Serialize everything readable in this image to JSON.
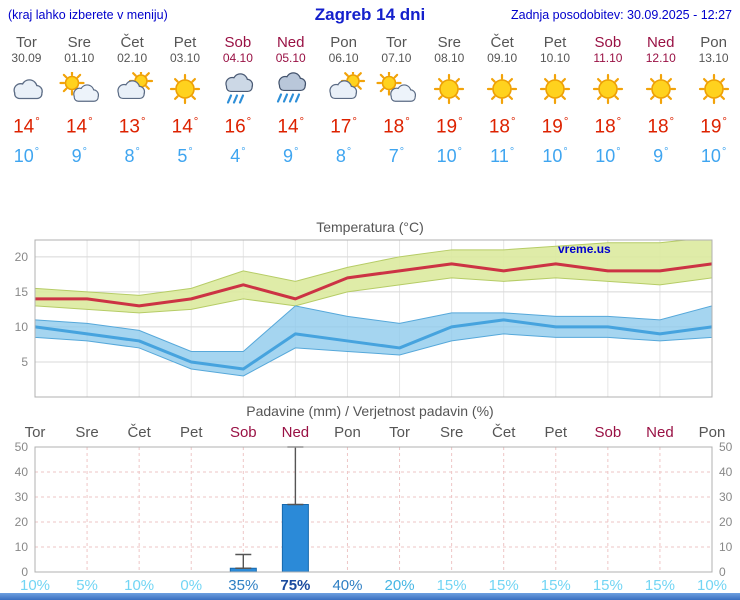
{
  "degree_symbol": "°",
  "header": {
    "left_note": "(kraj lahko izberete v meniju)",
    "title": "Zagreb 14 dni",
    "last_update": "Zadnja posodobitev: 30.09.2025 - 12:27"
  },
  "colors": {
    "header_blue": "#0000cc",
    "title_blue": "#1420cc",
    "weekday": "#555555",
    "weekend": "#991144",
    "temp_high": "#dd2200",
    "temp_low": "#3fa5f0",
    "footer_bar": "#3a6fc0"
  },
  "days": [
    {
      "name": "Tor",
      "date": "30.09",
      "weekend": false,
      "icon": "cloudy",
      "tmax": 14,
      "tmin": 10
    },
    {
      "name": "Sre",
      "date": "01.10",
      "weekend": false,
      "icon": "partly-cloudy",
      "tmax": 14,
      "tmin": 9
    },
    {
      "name": "Čet",
      "date": "02.10",
      "weekend": false,
      "icon": "mostly-cloudy",
      "tmax": 13,
      "tmin": 8
    },
    {
      "name": "Pet",
      "date": "03.10",
      "weekend": false,
      "icon": "sunny",
      "tmax": 14,
      "tmin": 5
    },
    {
      "name": "Sob",
      "date": "04.10",
      "weekend": true,
      "icon": "rain",
      "tmax": 16,
      "tmin": 4
    },
    {
      "name": "Ned",
      "date": "05.10",
      "weekend": true,
      "icon": "heavy-rain",
      "tmax": 14,
      "tmin": 9
    },
    {
      "name": "Pon",
      "date": "06.10",
      "weekend": false,
      "icon": "mostly-cloudy",
      "tmax": 17,
      "tmin": 8
    },
    {
      "name": "Tor",
      "date": "07.10",
      "weekend": false,
      "icon": "partly-cloudy",
      "tmax": 18,
      "tmin": 7
    },
    {
      "name": "Sre",
      "date": "08.10",
      "weekend": false,
      "icon": "sunny",
      "tmax": 19,
      "tmin": 10
    },
    {
      "name": "Čet",
      "date": "09.10",
      "weekend": false,
      "icon": "sunny",
      "tmax": 18,
      "tmin": 11
    },
    {
      "name": "Pet",
      "date": "10.10",
      "weekend": false,
      "icon": "sunny",
      "tmax": 19,
      "tmin": 10
    },
    {
      "name": "Sob",
      "date": "11.10",
      "weekend": true,
      "icon": "sunny",
      "tmax": 18,
      "tmin": 10
    },
    {
      "name": "Ned",
      "date": "12.10",
      "weekend": true,
      "icon": "sunny",
      "tmax": 18,
      "tmin": 9
    },
    {
      "name": "Pon",
      "date": "13.10",
      "weekend": false,
      "icon": "sunny",
      "tmax": 19,
      "tmin": 10
    }
  ],
  "chart_data": [
    {
      "type": "line",
      "title": "Temperatura (°C)",
      "watermark": "vreme.us",
      "categories": [
        "Tor",
        "Sre",
        "Čet",
        "Pet",
        "Sob",
        "Ned",
        "Pon",
        "Tor",
        "Sre",
        "Čet",
        "Pet",
        "Sob",
        "Ned",
        "Pon"
      ],
      "yticks": [
        5,
        10,
        15,
        20
      ],
      "ylim": [
        0,
        22.4
      ],
      "grid": true,
      "band_colors": {
        "tmax": "#dcea9e",
        "tmin": "#8ecbec"
      },
      "series": [
        {
          "name": "tmax",
          "color": "#cc3344",
          "values": [
            14,
            14,
            13,
            14,
            16,
            14,
            17,
            18,
            19,
            18,
            19,
            18,
            18,
            19
          ]
        },
        {
          "name": "tmax_band_upper",
          "values": [
            15.5,
            15,
            14.5,
            15.5,
            18,
            16.5,
            18.5,
            20,
            21,
            21,
            21.5,
            22,
            22,
            22.8
          ]
        },
        {
          "name": "tmax_band_lower",
          "values": [
            13,
            12.5,
            12,
            12.5,
            14,
            13,
            15,
            16,
            17,
            16.5,
            17,
            16.5,
            16,
            17
          ]
        },
        {
          "name": "tmin",
          "color": "#46a3de",
          "values": [
            10,
            9,
            8,
            5,
            4,
            9,
            8,
            7,
            10,
            11,
            10,
            10,
            9,
            10
          ]
        },
        {
          "name": "tmin_band_upper",
          "values": [
            11,
            10.5,
            9.5,
            6.5,
            6.5,
            13,
            11.5,
            10.5,
            12,
            12,
            11.5,
            11.5,
            11,
            13
          ]
        },
        {
          "name": "tmin_band_lower",
          "values": [
            8.5,
            8,
            7,
            4,
            3,
            7,
            6.5,
            6,
            8,
            9,
            8.5,
            8.5,
            8,
            8.5
          ]
        }
      ]
    },
    {
      "type": "bar",
      "title": "Padavine (mm) / Verjetnost padavin (%)",
      "categories": [
        "Tor",
        "Sre",
        "Čet",
        "Pet",
        "Sob",
        "Ned",
        "Pon",
        "Tor",
        "Sre",
        "Čet",
        "Pet",
        "Sob",
        "Ned",
        "Pon"
      ],
      "yticks": [
        0,
        10,
        20,
        30,
        40,
        50
      ],
      "ylim": [
        0,
        50
      ],
      "bar_color": "#2b8ad8",
      "values": [
        0,
        0,
        0,
        0,
        1.5,
        27,
        0,
        0,
        0,
        0,
        0,
        0,
        0,
        0
      ],
      "whisker_max": [
        0,
        0,
        0,
        0,
        7,
        50,
        0,
        0,
        0,
        0,
        0,
        0,
        0,
        0
      ],
      "probabilities": [
        10,
        5,
        10,
        0,
        35,
        75,
        40,
        20,
        15,
        15,
        15,
        15,
        15,
        10
      ],
      "prob_labels": [
        "10%",
        "5%",
        "10%",
        "0%",
        "35%",
        "75%",
        "40%",
        "20%",
        "15%",
        "15%",
        "15%",
        "15%",
        "15%",
        "10%"
      ],
      "prob_colors": {
        "low": "#72d5f4",
        "mid": "#46b6e4",
        "high": "#2e7fc4",
        "very_high": "#1a4a9e"
      }
    }
  ]
}
